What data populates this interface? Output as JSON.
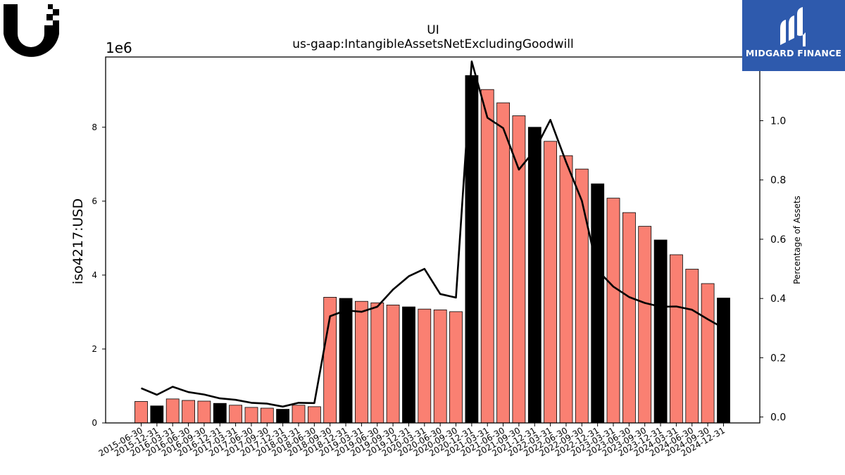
{
  "chart_data": {
    "type": "bar",
    "title": "UI",
    "subtitle": "us-gaap:IntangibleAssetsNetExcludingGoodwill",
    "ylabel": "iso4217:USD",
    "y_multiplier": "1e6",
    "y2label": "Percentage of Assets",
    "categories": [
      "2015-06-30",
      "2015-12-31",
      "2016-03-31",
      "2016-06-30",
      "2016-09-30",
      "2016-12-31",
      "2017-03-31",
      "2017-06-30",
      "2017-09-30",
      "2017-12-31",
      "2018-03-31",
      "2018-06-30",
      "2018-09-30",
      "2018-12-31",
      "2019-03-31",
      "2019-06-30",
      "2019-09-30",
      "2019-12-31",
      "2020-03-31",
      "2020-06-30",
      "2020-09-30",
      "2020-12-31",
      "2021-03-31",
      "2021-06-30",
      "2021-09-30",
      "2021-12-31",
      "2022-03-31",
      "2022-06-30",
      "2022-09-30",
      "2022-12-31",
      "2023-03-31",
      "2023-06-30",
      "2023-09-30",
      "2023-12-31",
      "2024-03-31",
      "2024-06-30",
      "2024-09-30",
      "2024-12-31"
    ],
    "values": [
      580000,
      460000,
      650000,
      610000,
      590000,
      530000,
      480000,
      420000,
      400000,
      370000,
      480000,
      440000,
      3400000,
      3370000,
      3290000,
      3250000,
      3190000,
      3140000,
      3080000,
      3060000,
      3010000,
      9400000,
      9020000,
      8660000,
      8310000,
      8000000,
      7620000,
      7230000,
      6870000,
      6470000,
      6080000,
      5690000,
      5320000,
      4950000,
      4550000,
      4160000,
      3770000,
      3380000
    ],
    "highlight": [
      false,
      true,
      false,
      false,
      false,
      true,
      false,
      false,
      false,
      true,
      false,
      false,
      false,
      true,
      false,
      false,
      false,
      true,
      false,
      false,
      false,
      true,
      false,
      false,
      false,
      true,
      false,
      false,
      false,
      true,
      false,
      false,
      false,
      true,
      false,
      false,
      false,
      true
    ],
    "line_series": {
      "name": "Percentage of Assets",
      "values": [
        0.097,
        0.075,
        0.102,
        0.084,
        0.076,
        0.063,
        0.058,
        0.048,
        0.045,
        0.035,
        0.048,
        0.047,
        0.34,
        0.36,
        0.355,
        0.372,
        0.43,
        0.475,
        0.5,
        0.415,
        0.403,
        1.2,
        1.01,
        0.975,
        0.835,
        0.9,
        1.003,
        0.86,
        0.73,
        0.495,
        0.44,
        0.405,
        0.385,
        0.372,
        0.373,
        0.362,
        0.33,
        0.3
      ]
    },
    "ylim": [
      0,
      9900000
    ],
    "yticks": [
      0,
      2000000,
      4000000,
      6000000,
      8000000
    ],
    "ytick_labels": [
      "0",
      "2",
      "4",
      "6",
      "8"
    ],
    "y2lim": [
      -0.02,
      1.215
    ],
    "y2ticks": [
      0.0,
      0.2,
      0.4,
      0.6,
      0.8,
      1.0
    ],
    "y2tick_labels": [
      "0.0",
      "0.2",
      "0.4",
      "0.6",
      "0.8",
      "1.0"
    ],
    "colors": {
      "bar": "#fa8072",
      "bar_highlight": "#000000",
      "line": "#000000",
      "axis": "#000000"
    }
  },
  "logos": {
    "left": {
      "name": "ubiquiti-logo",
      "color": "#000000"
    },
    "right": {
      "text": "MIDGARD FINANCE",
      "bg": "#2e5aad",
      "fg": "#ffffff"
    }
  }
}
